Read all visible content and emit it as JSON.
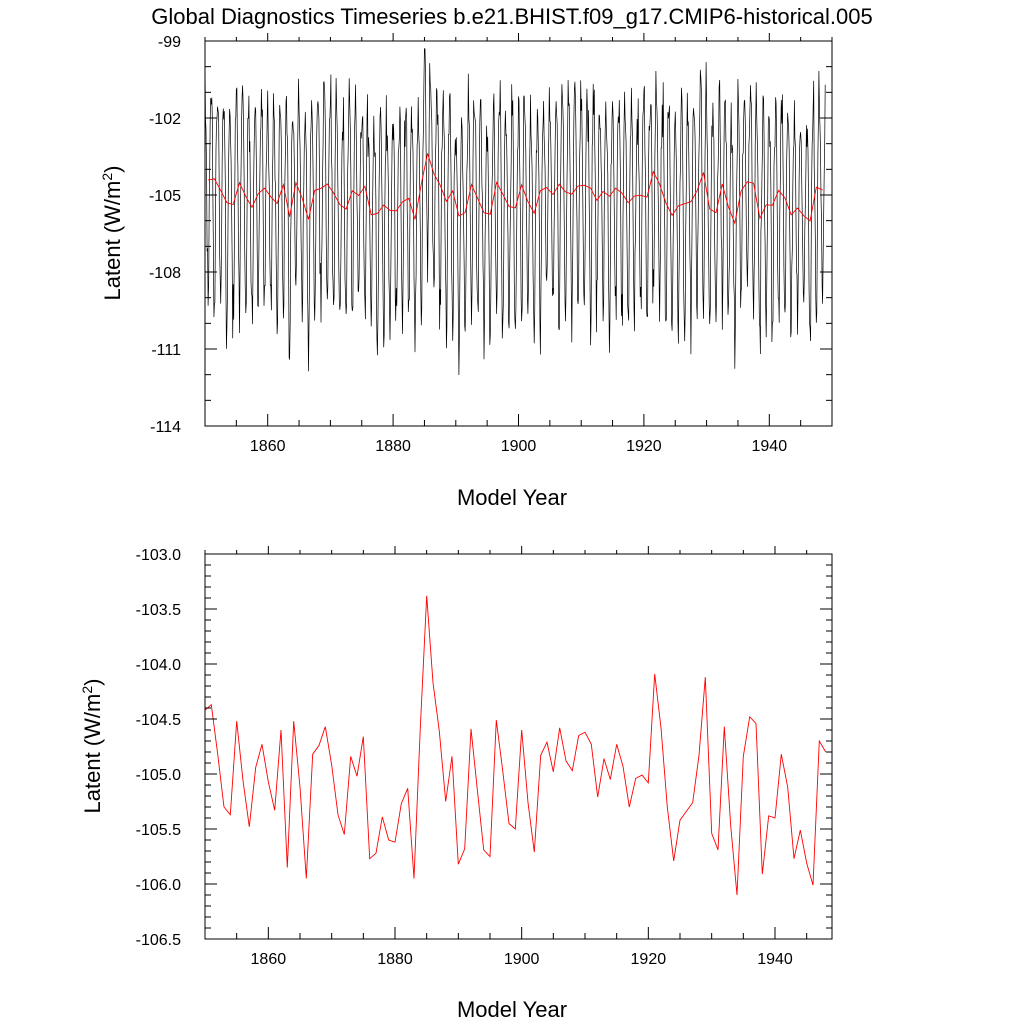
{
  "figure": {
    "title": "Global Diagnostics Timeseries b.e21.BHIST.f09_g17.CMIP6-historical.005"
  },
  "colors": {
    "monthly": "#000000",
    "annual": "#ff0000",
    "background": "#ffffff"
  },
  "chart_data": [
    {
      "type": "line",
      "panel": "top",
      "xlabel": "Model Year",
      "ylabel": "Latent (W/m",
      "ylabel_sup": "2",
      "ylabel_close": ")",
      "xlim": [
        1850,
        1950
      ],
      "ylim": [
        -114,
        -99
      ],
      "xticks": [
        1860,
        1880,
        1900,
        1920,
        1940
      ],
      "yticks": [
        -114,
        -111,
        -108,
        -105,
        -102,
        -99
      ],
      "series": [
        {
          "name": "monthly",
          "color": "#000000",
          "note": "monthly values oscillating between roughly -111.5 and -100 around the annual mean (generated from annual series with a seasonal cycle)"
        },
        {
          "name": "annual",
          "color": "#ff0000",
          "x_start": 1850,
          "values": [
            -104.42,
            -104.37,
            -104.82,
            -105.3,
            -105.37,
            -104.52,
            -105.06,
            -105.48,
            -104.94,
            -104.73,
            -105.07,
            -105.33,
            -104.6,
            -105.85,
            -104.52,
            -105.12,
            -105.95,
            -104.82,
            -104.74,
            -104.57,
            -104.92,
            -105.37,
            -105.55,
            -104.84,
            -105.02,
            -104.66,
            -105.77,
            -105.72,
            -105.39,
            -105.6,
            -105.62,
            -105.27,
            -105.13,
            -105.95,
            -104.58,
            -103.38,
            -104.17,
            -104.61,
            -105.25,
            -104.84,
            -105.82,
            -105.68,
            -104.59,
            -105.14,
            -105.69,
            -105.75,
            -104.51,
            -104.97,
            -105.45,
            -105.5,
            -104.6,
            -105.26,
            -105.71,
            -104.83,
            -104.71,
            -104.98,
            -104.58,
            -104.88,
            -104.97,
            -104.65,
            -104.62,
            -104.73,
            -105.21,
            -104.86,
            -105.05,
            -104.73,
            -104.93,
            -105.3,
            -105.04,
            -105.01,
            -105.08,
            -104.09,
            -104.58,
            -105.3,
            -105.79,
            -105.42,
            -105.34,
            -105.26,
            -104.83,
            -104.12,
            -105.54,
            -105.69,
            -104.57,
            -105.47,
            -106.1,
            -104.84,
            -104.48,
            -104.54,
            -105.91,
            -105.38,
            -105.4,
            -104.82,
            -105.12,
            -105.77,
            -105.51,
            -105.81,
            -106.01,
            -104.7,
            -104.8
          ]
        }
      ]
    },
    {
      "type": "line",
      "panel": "bottom",
      "xlabel": "Model Year",
      "ylabel": "Latent (W/m",
      "ylabel_sup": "2",
      "ylabel_close": ")",
      "xlim": [
        1850,
        1949
      ],
      "ylim": [
        -106.5,
        -103.0
      ],
      "xticks": [
        1860,
        1880,
        1900,
        1920,
        1940
      ],
      "yticks": [
        -106.5,
        -106.0,
        -105.5,
        -105.0,
        -104.5,
        -104.0,
        -103.5,
        -103.0
      ],
      "ytick_labels": [
        "-106.5",
        "-106.0",
        "-105.5",
        "-105.0",
        "-104.5",
        "-104.0",
        "-103.5",
        "-103.0"
      ],
      "series": [
        {
          "name": "annual",
          "color": "#ff0000",
          "x_start": 1850,
          "uses_series_from_panel": "top"
        }
      ]
    }
  ]
}
